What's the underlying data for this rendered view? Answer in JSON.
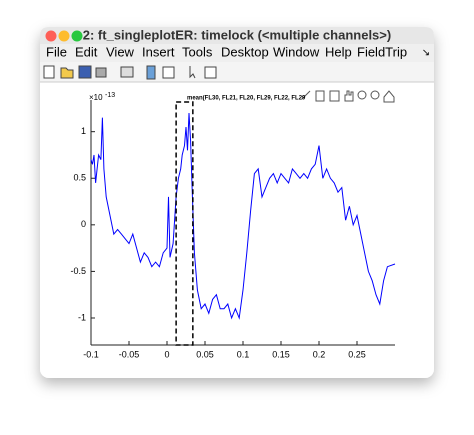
{
  "window": {
    "title": "2: ft_singleplotER: timelock (<multiple channels>)"
  },
  "menu": [
    "File",
    "Edit",
    "View",
    "Insert",
    "Tools",
    "Desktop",
    "Window",
    "Help",
    "FieldTrip"
  ],
  "chart_data": {
    "type": "line",
    "title": "mean(FL30, FL21, FL20, FL29, FL22, FL29",
    "y_multiplier": "×10",
    "y_multiplier_exponent": "-13",
    "x": [
      -0.1,
      -0.098,
      -0.096,
      -0.094,
      -0.092,
      -0.09,
      -0.087,
      -0.085,
      -0.083,
      -0.08,
      -0.075,
      -0.07,
      -0.065,
      -0.06,
      -0.055,
      -0.05,
      -0.045,
      -0.04,
      -0.035,
      -0.03,
      -0.025,
      -0.02,
      -0.015,
      -0.01,
      -0.005,
      0,
      0.002,
      0.004,
      0.008,
      0.012,
      0.015,
      0.018,
      0.02,
      0.023,
      0.025,
      0.027,
      0.029,
      0.031,
      0.033,
      0.036,
      0.04,
      0.045,
      0.05,
      0.055,
      0.06,
      0.065,
      0.07,
      0.075,
      0.08,
      0.085,
      0.09,
      0.095,
      0.1,
      0.105,
      0.11,
      0.115,
      0.12,
      0.125,
      0.13,
      0.135,
      0.14,
      0.145,
      0.15,
      0.155,
      0.16,
      0.165,
      0.17,
      0.175,
      0.18,
      0.185,
      0.19,
      0.195,
      0.2,
      0.205,
      0.21,
      0.215,
      0.22,
      0.225,
      0.23,
      0.235,
      0.24,
      0.245,
      0.25,
      0.255,
      0.26,
      0.265,
      0.27,
      0.275,
      0.28,
      0.285,
      0.29,
      0.3
    ],
    "values": [
      0.7,
      0.65,
      0.75,
      0.45,
      0.6,
      0.75,
      0.7,
      1.15,
      0.6,
      0.3,
      0.1,
      -0.1,
      -0.05,
      -0.1,
      -0.15,
      -0.2,
      -0.1,
      -0.25,
      -0.4,
      -0.3,
      -0.35,
      -0.45,
      -0.4,
      -0.45,
      -0.3,
      -0.25,
      0.3,
      -0.35,
      -0.2,
      0.3,
      0.5,
      0.6,
      0.75,
      0.85,
      1.05,
      0.8,
      1.2,
      0.9,
      0.4,
      -0.3,
      -0.7,
      -0.9,
      -0.85,
      -0.95,
      -0.8,
      -0.75,
      -0.9,
      -0.9,
      -0.85,
      -1.0,
      -0.9,
      -1.0,
      -0.7,
      -0.3,
      0.15,
      0.55,
      0.6,
      0.3,
      0.4,
      0.5,
      0.55,
      0.45,
      0.55,
      0.5,
      0.45,
      0.6,
      0.55,
      0.5,
      0.55,
      0.5,
      0.6,
      0.65,
      0.85,
      0.5,
      0.6,
      0.5,
      0.45,
      0.35,
      0.4,
      0.05,
      0.2,
      0.0,
      0.1,
      -0.1,
      -0.3,
      -0.5,
      -0.6,
      -0.75,
      -0.85,
      -0.6,
      -0.45,
      -0.42
    ],
    "color": "#0000ff",
    "xlim": [
      -0.1,
      0.3
    ],
    "xticks": [
      -0.1,
      -0.05,
      0,
      0.05,
      0.1,
      0.15,
      0.2,
      0.25
    ],
    "ylim": [
      -1.29,
      1.34
    ],
    "yticks": [
      -1,
      -0.5,
      0,
      0.5,
      1
    ],
    "selection_xlim": [
      0.012,
      0.034
    ]
  }
}
